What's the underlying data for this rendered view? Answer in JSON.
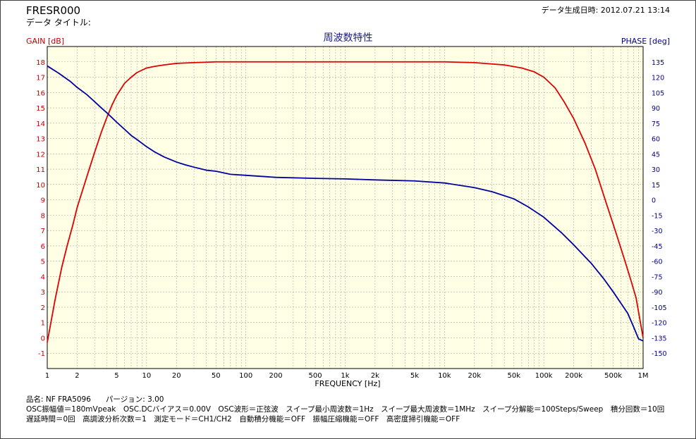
{
  "header": {
    "file_name": "FRESR000",
    "data_title": "データ タイトル:",
    "created": "データ生成日時: 2012.07.21 13:14"
  },
  "info_lines": [
    "品名: NF FRA5096　　パージョン: 3.00",
    "OSC振幅値＝180mVpeak　OSC.DCバイアス＝0.00V　OSC波形＝正弦波　スイープ最小周波数＝1Hz　スイープ最大周波数＝1MHz　スイープ分解能＝100Steps/Sweep　積分回数＝10回",
    "遅延時間＝0回　高調波分析次数＝1　測定モード＝CH1/CH2　自動積分機能＝OFF　振幅圧縮機能＝OFF　高密度掃引機能＝OFF"
  ],
  "colors": {
    "plot_bg": "#ffffe6",
    "grid": "#a9a9a9",
    "gain": "#e00000",
    "phase": "#0000a0",
    "gain_axis": "#c00000",
    "phase_axis": "#000080"
  },
  "chart_data": {
    "type": "line",
    "title": "周波数特性",
    "xlabel": "FREQUENCY [Hz]",
    "ylabel_left": "GAIN [dB]",
    "ylabel_right": "PHASE [deg]",
    "x_scale": "log",
    "xlim": [
      1,
      1000000
    ],
    "ylim_left": [
      -2,
      19
    ],
    "ylim_right": [
      -165,
      150
    ],
    "grid": true,
    "x_ticks": [
      {
        "v": 1,
        "label": "1"
      },
      {
        "v": 2,
        "label": "2"
      },
      {
        "v": 5,
        "label": "5"
      },
      {
        "v": 10,
        "label": "10"
      },
      {
        "v": 20,
        "label": "20"
      },
      {
        "v": 50,
        "label": "50"
      },
      {
        "v": 100,
        "label": "100"
      },
      {
        "v": 200,
        "label": "200"
      },
      {
        "v": 500,
        "label": "500"
      },
      {
        "v": 1000,
        "label": "1k"
      },
      {
        "v": 2000,
        "label": "2k"
      },
      {
        "v": 5000,
        "label": "5k"
      },
      {
        "v": 10000,
        "label": "10k"
      },
      {
        "v": 20000,
        "label": "20k"
      },
      {
        "v": 50000,
        "label": "50k"
      },
      {
        "v": 100000,
        "label": "100k"
      },
      {
        "v": 200000,
        "label": "200k"
      },
      {
        "v": 500000,
        "label": "500k"
      },
      {
        "v": 1000000,
        "label": "1M"
      }
    ],
    "y_left_ticks": [
      -1,
      0,
      1,
      2,
      3,
      4,
      5,
      6,
      7,
      8,
      9,
      10,
      11,
      12,
      13,
      14,
      15,
      16,
      17,
      18
    ],
    "y_right_ticks": [
      -150,
      -135,
      -120,
      -105,
      -90,
      -75,
      -60,
      -45,
      -30,
      -15,
      0,
      15,
      30,
      45,
      60,
      75,
      90,
      105,
      120,
      135
    ],
    "series": [
      {
        "name": "GAIN",
        "axis": "left",
        "x": [
          1,
          1.2,
          1.4,
          1.6,
          1.8,
          2,
          2.5,
          3,
          3.5,
          4,
          4.5,
          5,
          6,
          7,
          8,
          10,
          12,
          15,
          20,
          30,
          50,
          100,
          1000,
          10000,
          20000,
          40000,
          60000,
          80000,
          100000,
          130000,
          160000,
          200000,
          260000,
          330000,
          420000,
          530000,
          650000,
          750000,
          850000,
          1000000
        ],
        "values": [
          -0.3,
          2.5,
          4.6,
          6.1,
          7.3,
          8.5,
          10.5,
          12.1,
          13.4,
          14.4,
          15.2,
          15.8,
          16.6,
          17.0,
          17.3,
          17.6,
          17.7,
          17.8,
          17.9,
          17.95,
          18.0,
          18.0,
          18.0,
          18.0,
          17.95,
          17.8,
          17.6,
          17.35,
          17.0,
          16.3,
          15.4,
          14.3,
          12.7,
          11.0,
          8.9,
          6.9,
          5.1,
          3.8,
          2.6,
          0.0
        ]
      },
      {
        "name": "PHASE",
        "axis": "right",
        "x": [
          1,
          1.3,
          1.7,
          2,
          2.5,
          3,
          3.5,
          4,
          5,
          6,
          7,
          8,
          10,
          12,
          15,
          20,
          25,
          30,
          40,
          50,
          70,
          100,
          200,
          500,
          1000,
          2000,
          5000,
          10000,
          20000,
          30000,
          50000,
          70000,
          100000,
          150000,
          200000,
          300000,
          400000,
          500000,
          700000,
          800000,
          900000,
          1000000
        ],
        "values": [
          131,
          124,
          116,
          110,
          103,
          96,
          90,
          85,
          76,
          69,
          63,
          59,
          52,
          47,
          42,
          37,
          34,
          32,
          29,
          28,
          25,
          24,
          22,
          21,
          20.5,
          19.5,
          18.5,
          16.5,
          12,
          8,
          1,
          -7,
          -17,
          -32,
          -44,
          -62,
          -77,
          -90,
          -111,
          -124,
          -136,
          -138
        ]
      }
    ]
  }
}
